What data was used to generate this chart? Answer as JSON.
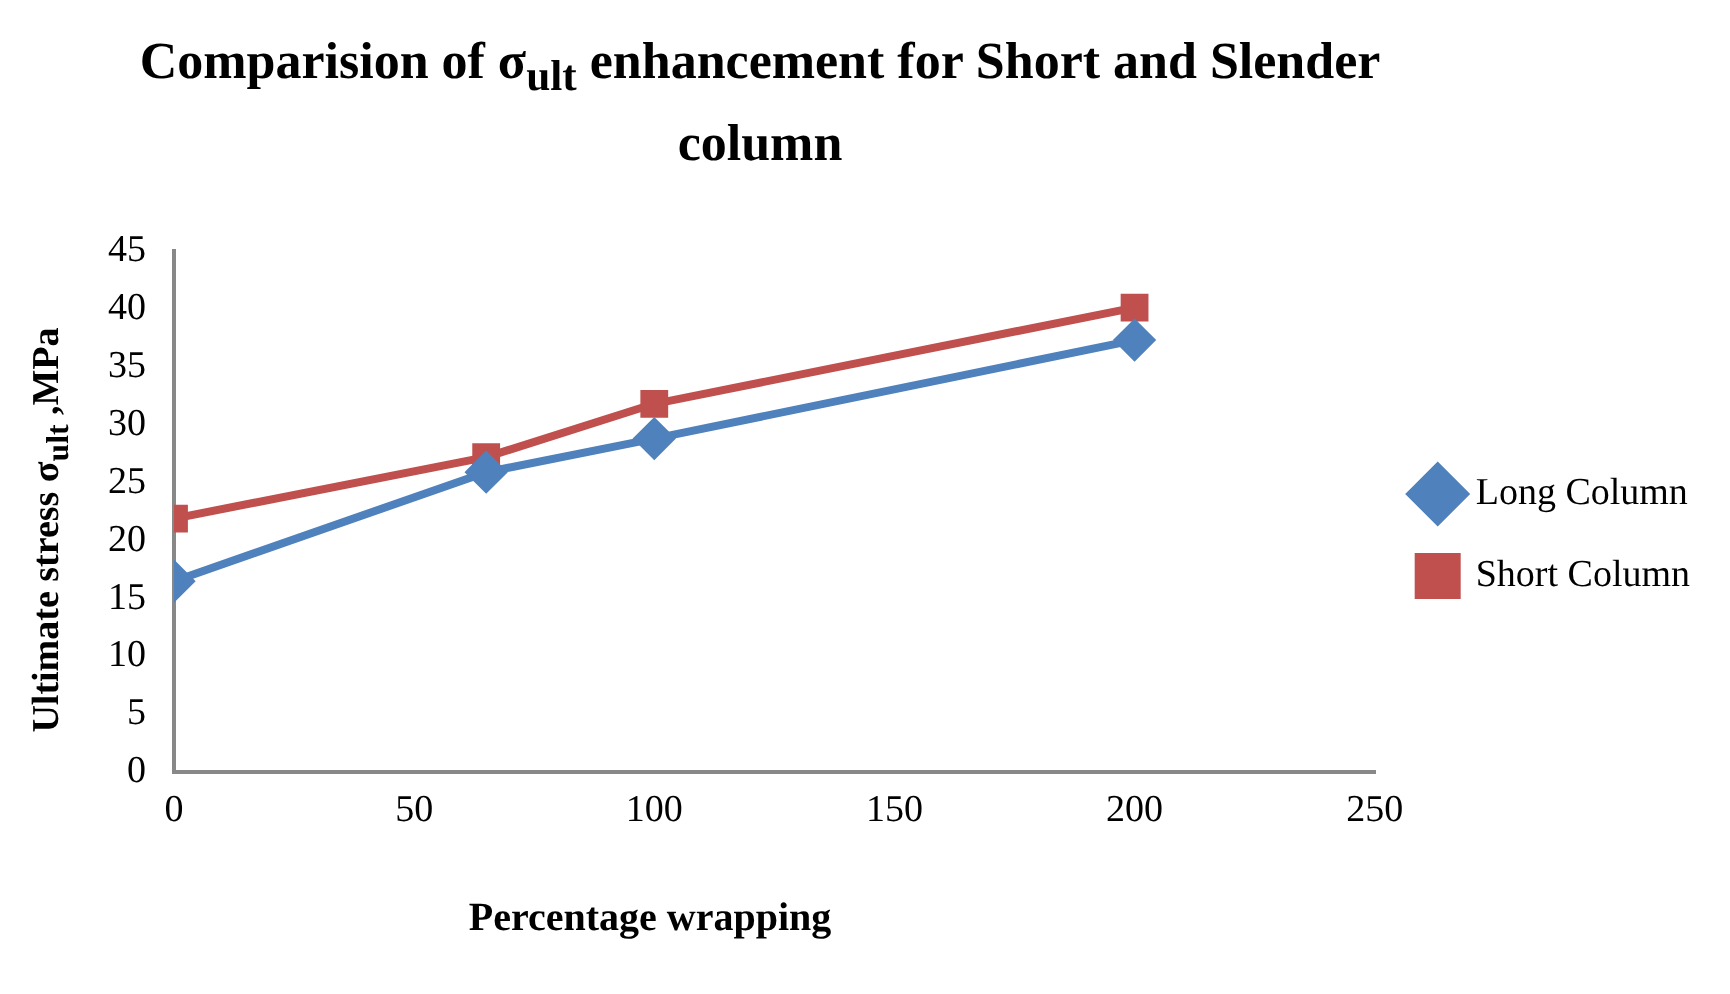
{
  "chart_data": {
    "type": "line",
    "title": "Comparision of σ$_{ult}$ enhancement for Short and Slender column",
    "xlabel": "Percentage wrapping",
    "ylabel": "Ultimate stress σ$_{ult}$ ,MPa",
    "x": [
      0,
      65,
      100,
      200
    ],
    "series": [
      {
        "name": "Long Column",
        "color": "#4f81bd",
        "marker": "diamond",
        "values": [
          16.5,
          25.9,
          28.8,
          37.3
        ]
      },
      {
        "name": "Short Column",
        "color": "#c0504d",
        "marker": "square",
        "values": [
          21.9,
          27.2,
          31.8,
          40.1
        ]
      }
    ],
    "xlim": [
      0,
      250
    ],
    "xticks": [
      0,
      50,
      100,
      150,
      200,
      250
    ],
    "ylim": [
      0,
      45
    ],
    "yticks": [
      0,
      5,
      10,
      15,
      20,
      25,
      30,
      35,
      40,
      45
    ],
    "grid": false,
    "legend": "right"
  }
}
